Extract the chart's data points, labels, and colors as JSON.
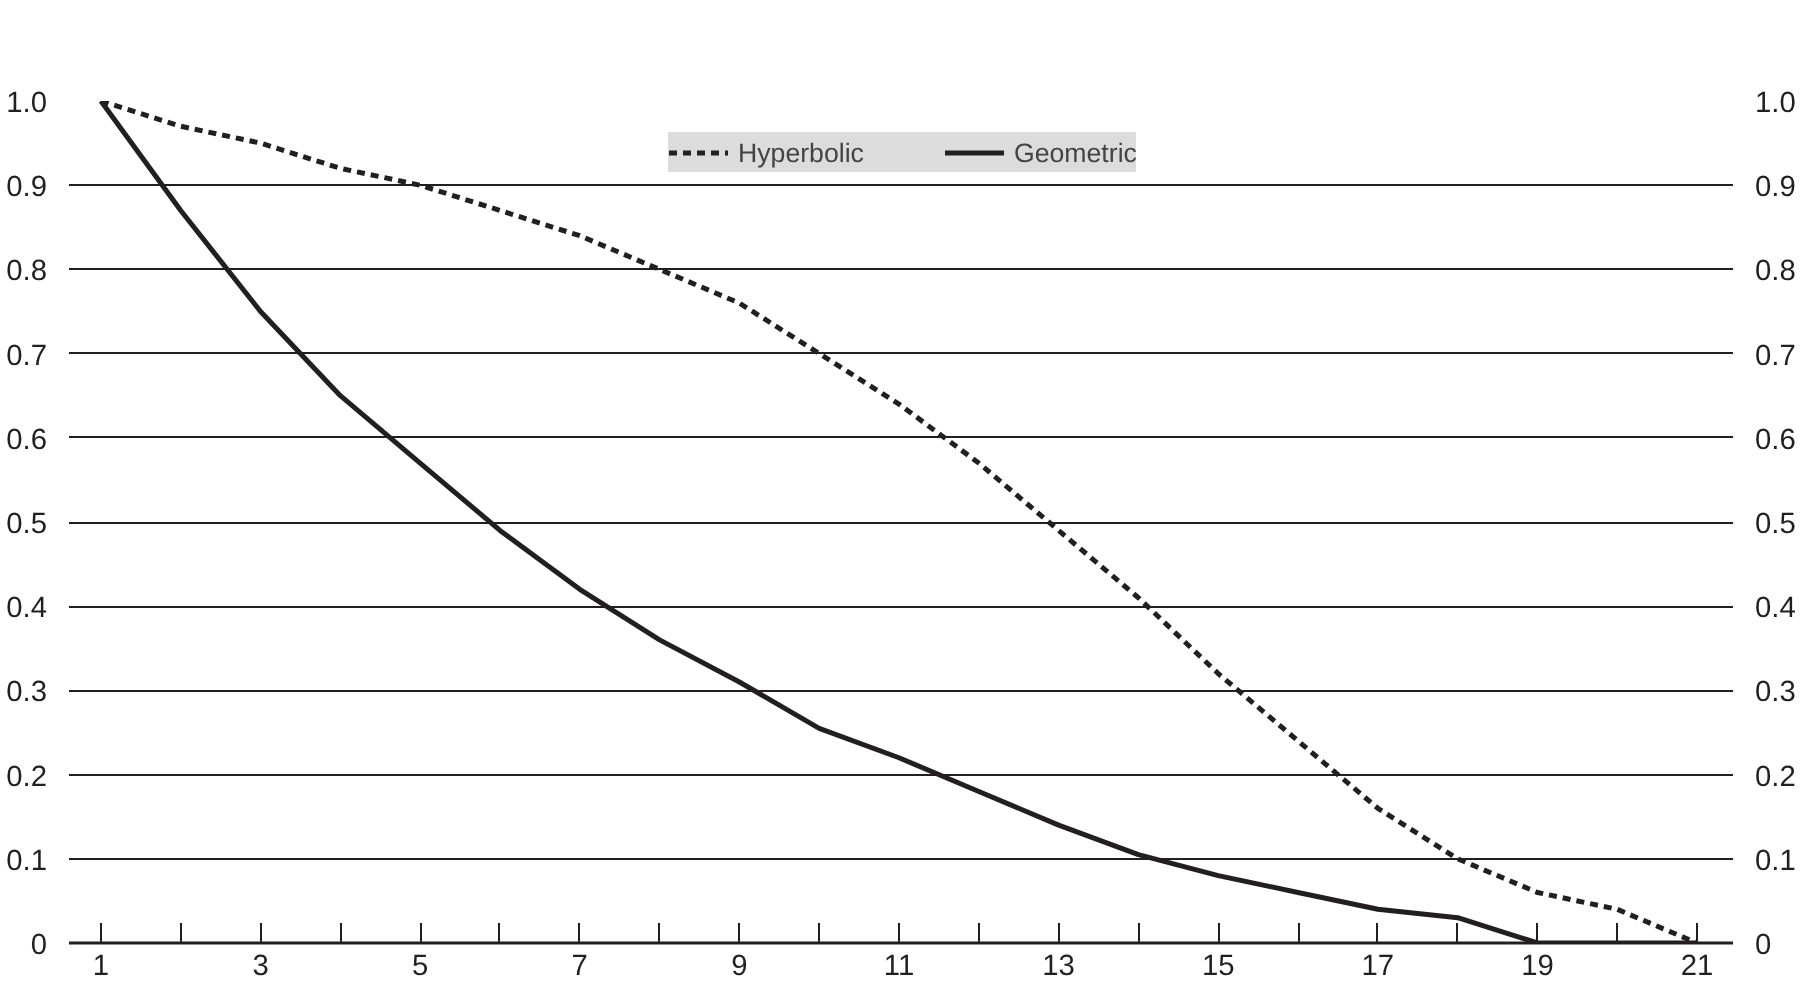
{
  "chart_data": {
    "type": "line",
    "x": [
      1,
      2,
      3,
      4,
      5,
      6,
      7,
      8,
      9,
      10,
      11,
      12,
      13,
      14,
      15,
      16,
      17,
      18,
      19,
      20,
      21
    ],
    "series": [
      {
        "name": "Hyperbolic",
        "color": "#231f20",
        "line_style": "dashed",
        "values": [
          1.0,
          0.97,
          0.95,
          0.92,
          0.9,
          0.87,
          0.84,
          0.8,
          0.76,
          0.7,
          0.64,
          0.57,
          0.49,
          0.41,
          0.32,
          0.24,
          0.16,
          0.1,
          0.06,
          0.04,
          0.0
        ]
      },
      {
        "name": "Geometric",
        "color": "#231f20",
        "line_style": "solid",
        "values": [
          1.0,
          0.87,
          0.75,
          0.65,
          0.57,
          0.49,
          0.42,
          0.36,
          0.31,
          0.255,
          0.22,
          0.18,
          0.14,
          0.105,
          0.08,
          0.06,
          0.04,
          0.03,
          0.0,
          0.0,
          0.0
        ]
      }
    ],
    "xlim": [
      0.6,
      21.45
    ],
    "xticks": [
      1,
      {
        "value": 2,
        "label": null
      },
      3,
      {
        "value": 4,
        "label": null
      },
      5,
      {
        "value": 6,
        "label": null
      },
      7,
      {
        "value": 8,
        "label": null
      },
      9,
      {
        "value": 10,
        "label": null
      },
      11,
      {
        "value": 12,
        "label": null
      },
      13,
      {
        "value": 14,
        "label": null
      },
      15,
      {
        "value": 16,
        "label": null
      },
      17,
      {
        "value": 18,
        "label": null
      },
      19,
      {
        "value": 20,
        "label": null
      },
      21
    ],
    "ylim": [
      0,
      1.0
    ],
    "yticks": [
      0,
      0.1,
      0.2,
      0.3,
      0.4,
      0.5,
      0.6,
      0.7,
      0.8,
      0.9,
      {
        "value": 1.0,
        "label": "1.0"
      }
    ],
    "y2lim": [
      0,
      1.0
    ],
    "y2ticks": [
      0,
      0.1,
      0.2,
      0.3,
      0.4,
      0.5,
      0.6,
      0.7,
      0.8,
      0.9,
      {
        "value": 1.0,
        "label": "1.0"
      }
    ],
    "grid": "y",
    "legend": "top",
    "marker": "none"
  }
}
